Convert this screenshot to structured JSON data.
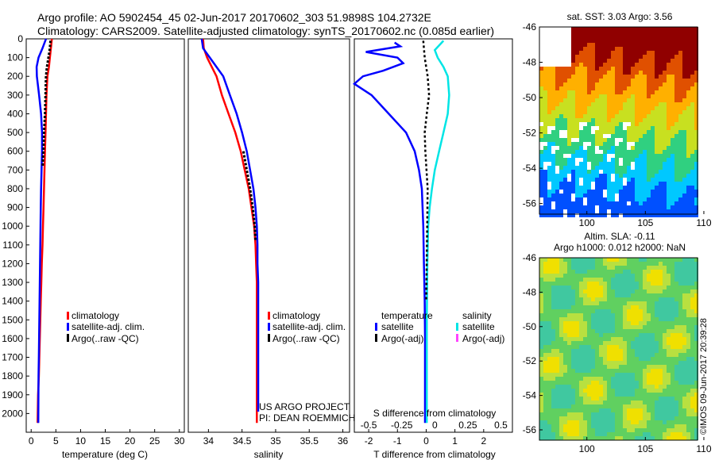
{
  "header": {
    "line1": "Argo profile: AO 5902454_45 02-Jun-2017 20170602_303 51.9898S 104.2732E",
    "line2": "Climatology: CARS2009. Satellite-adjusted climatology: synTS_20170602.nc (0.085d earlier)"
  },
  "colors": {
    "climatology": "#ff0000",
    "satellite": "#0000ff",
    "argo": "#000000",
    "salinity_satellite": "#00e5e5",
    "salinity_argo": "#ff44ff"
  },
  "chart_data": [
    {
      "type": "line",
      "name": "temperature",
      "xlabel": "temperature (deg C)",
      "ylabel": "",
      "xlim": [
        -1,
        31
      ],
      "ylim": [
        2100,
        0
      ],
      "xticks": [
        0,
        5,
        10,
        15,
        20,
        25,
        30
      ],
      "yticks": [
        0,
        100,
        200,
        300,
        400,
        500,
        600,
        700,
        800,
        900,
        1000,
        1100,
        1200,
        1300,
        1400,
        1500,
        1600,
        1700,
        1800,
        1900,
        2000
      ],
      "legend": [
        "climatology",
        "satellite-adj. clim.",
        "Argo(..raw -QC)"
      ],
      "legend_position": "lower-center",
      "series": [
        {
          "name": "climatology",
          "x": [
            4.2,
            4.0,
            3.8,
            3.6,
            3.3,
            3.1,
            3.0,
            2.9,
            2.8,
            2.7,
            2.6,
            2.5,
            2.4,
            2.3,
            2.15,
            2.05,
            1.95,
            1.85,
            1.75,
            1.65,
            1.55,
            1.4,
            1.3
          ],
          "y": [
            0,
            50,
            100,
            150,
            200,
            300,
            400,
            500,
            600,
            700,
            800,
            900,
            1000,
            1100,
            1200,
            1300,
            1400,
            1500,
            1600,
            1700,
            1800,
            1900,
            2050
          ]
        },
        {
          "name": "satellite-adj. clim.",
          "x": [
            3.0,
            2.3,
            1.5,
            1.1,
            1.15,
            1.6,
            2.0,
            2.2,
            2.2,
            2.1,
            2.0,
            1.95,
            1.9,
            1.85,
            1.8,
            1.75,
            1.7,
            1.65,
            1.6,
            1.55,
            1.5,
            1.45
          ],
          "y": [
            0,
            50,
            100,
            150,
            200,
            300,
            400,
            500,
            600,
            700,
            800,
            900,
            1000,
            1100,
            1200,
            1300,
            1400,
            1500,
            1600,
            1700,
            1800,
            2050
          ]
        },
        {
          "name": "Argo(..raw -QC)",
          "x": [
            3.9,
            3.8,
            3.5,
            3.2,
            3.0,
            2.9,
            2.8,
            2.6,
            2.5,
            2.4,
            2.35
          ],
          "y": [
            10,
            50,
            100,
            150,
            200,
            300,
            400,
            500,
            600,
            650,
            680
          ]
        }
      ]
    },
    {
      "type": "line",
      "name": "salinity",
      "xlabel": "salinity",
      "xlim": [
        33.7,
        36.1
      ],
      "ylim": [
        2100,
        0
      ],
      "xticks": [
        34,
        34.5,
        35,
        35.5,
        36
      ],
      "legend": [
        "climatology",
        "satellite-adj. clim.",
        "Argo(..raw -QC)"
      ],
      "legend_position": "lower-center",
      "series": [
        {
          "name": "climatology",
          "x": [
            33.92,
            33.93,
            33.98,
            34.05,
            34.12,
            34.2,
            34.3,
            34.4,
            34.48,
            34.54,
            34.6,
            34.64,
            34.68,
            34.7,
            34.71,
            34.72,
            34.72,
            34.72,
            34.72,
            34.72
          ],
          "y": [
            0,
            50,
            100,
            150,
            200,
            300,
            400,
            500,
            600,
            700,
            800,
            900,
            1000,
            1100,
            1200,
            1300,
            1400,
            1500,
            1800,
            2050
          ]
        },
        {
          "name": "satellite-adj. clim.",
          "x": [
            33.9,
            33.92,
            34.02,
            34.12,
            34.22,
            34.32,
            34.42,
            34.5,
            34.57,
            34.62,
            34.67,
            34.7,
            34.72,
            34.73,
            34.73,
            34.74,
            34.74,
            34.74,
            34.74,
            34.74
          ],
          "y": [
            0,
            50,
            100,
            150,
            200,
            300,
            400,
            500,
            600,
            700,
            800,
            900,
            1000,
            1100,
            1200,
            1300,
            1400,
            1500,
            1800,
            1990
          ]
        },
        {
          "name": "Argo(..raw -QC)",
          "x": [
            34.52,
            34.57,
            34.62,
            34.66,
            34.69,
            34.7
          ],
          "y": [
            600,
            700,
            800,
            900,
            1000,
            1080
          ]
        }
      ]
    },
    {
      "type": "line",
      "name": "difference",
      "xlabel": "T difference from climatology",
      "top_label": "S difference from climatology",
      "xlim": [
        -2.5,
        3
      ],
      "ylim": [
        2100,
        0
      ],
      "xticks": [
        -2,
        -1,
        0,
        1,
        2
      ],
      "top_xticks": [
        "-0.5",
        "-0.25",
        "0",
        "0.25",
        "0.5"
      ],
      "legend": [
        "temperature",
        "satellite",
        "Argo(-adj)",
        "salinity",
        "satellite",
        "Argo(-adj)"
      ],
      "legend_position": "lower-center",
      "series": [
        {
          "name": "temperature satellite",
          "x": [
            -1.1,
            -0.9,
            -2.1,
            -1.0,
            -0.8,
            -1.5,
            -2.2,
            -2.5,
            -1.9,
            -1.3,
            -0.7,
            -0.4,
            -0.25,
            -0.15,
            -0.1,
            -0.08,
            -0.05,
            -0.04,
            -0.04,
            -0.04
          ],
          "y": [
            20,
            40,
            70,
            100,
            130,
            170,
            200,
            240,
            300,
            400,
            500,
            600,
            700,
            800,
            1000,
            1200,
            1400,
            1600,
            1800,
            2050
          ]
        },
        {
          "name": "salinity satellite",
          "x": [
            0.6,
            0.3,
            0.4,
            0.6,
            0.75,
            0.8,
            0.75,
            0.6,
            0.45,
            0.3,
            0.2,
            0.12,
            0.07,
            0.04,
            0.02,
            0.02,
            0.02
          ],
          "y": [
            10,
            60,
            100,
            150,
            200,
            300,
            400,
            500,
            600,
            700,
            800,
            900,
            1000,
            1200,
            1500,
            1800,
            2050
          ]
        },
        {
          "name": "temperature Argo(-adj)",
          "x": [
            -0.1,
            -0.05,
            0.05,
            0.1,
            0.02,
            -0.05,
            -0.03,
            0.05,
            0.0
          ],
          "y": [
            10,
            100,
            200,
            300,
            400,
            500,
            600,
            800,
            1400
          ]
        }
      ]
    },
    {
      "type": "heatmap",
      "name": "sst-map",
      "title": "sat. SST: 3.03 Argo: 3.56",
      "xticks": [
        100,
        105,
        110
      ],
      "yticks": [
        -46,
        -48,
        -50,
        -52,
        -54,
        -56
      ]
    },
    {
      "type": "heatmap",
      "name": "sla-map",
      "title_line1": "Altim. SLA: -0.11",
      "title_line2": "Argo h1000: 0.012 h2000: NaN",
      "xticks": [
        100,
        105,
        110
      ],
      "yticks": [
        -46,
        -48,
        -50,
        -52,
        -54,
        -56
      ]
    }
  ],
  "annotations": {
    "project_line1": "US ARGO PROJECT",
    "project_line2": "PI: DEAN ROEMMICH",
    "imos_stamp": "©IMOS 09-Jun-2017 20:39:28"
  },
  "legend_diff": {
    "temperature": "temperature",
    "salinity": "salinity",
    "satellite": "satellite",
    "argo_adj": "Argo(-adj)"
  }
}
